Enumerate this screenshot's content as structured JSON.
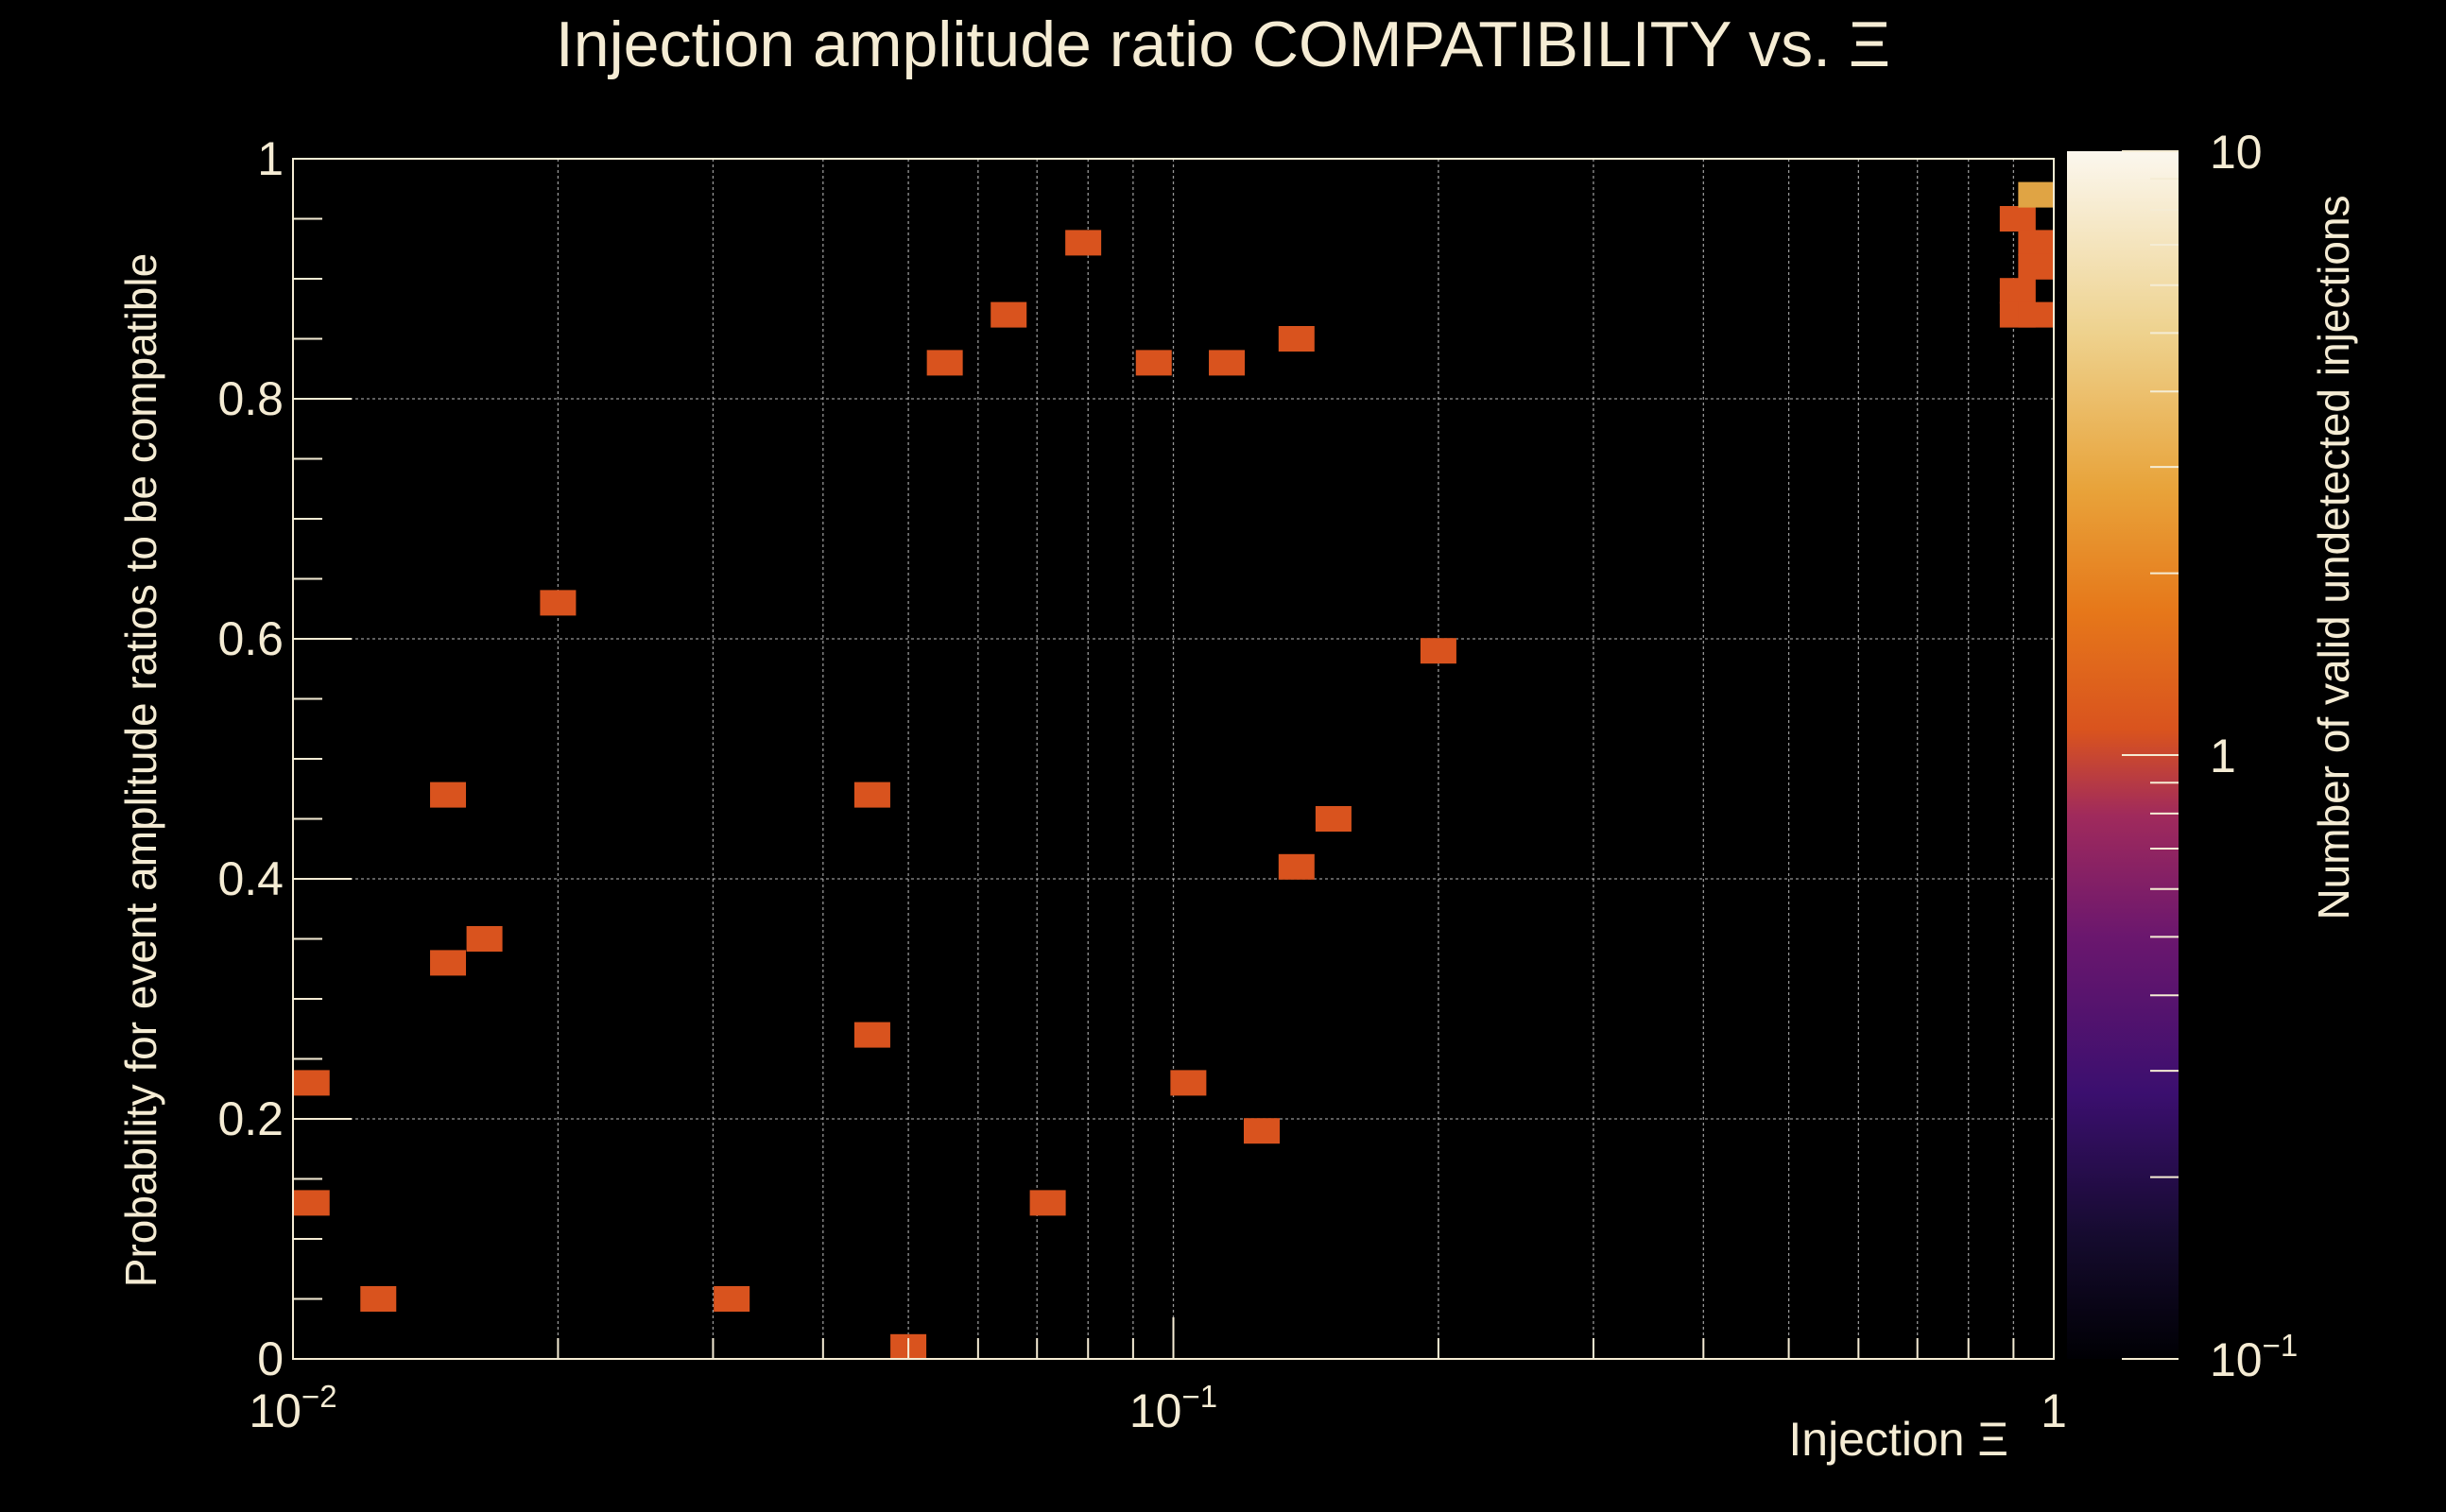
{
  "colors": {
    "background": "#000000",
    "text": "#f5ecd4",
    "axis": "#f5ecd4",
    "grid": "#c8c8c8",
    "cell": "#d9531e",
    "cell_high": "#e0a444"
  },
  "chart_data": {
    "type": "heatmap",
    "title": "Injection amplitude ratio COMPATIBILITY vs.  Ξ",
    "xlabel": "Injection Ξ",
    "ylabel": "Probability for event amplitude ratios to be compatible",
    "zlabel": "Number of valid undetected injections",
    "x_scale": "log",
    "xlim": [
      0.01,
      1
    ],
    "ylim": [
      0,
      1
    ],
    "z_scale": "log",
    "zlim": [
      0.1,
      10
    ],
    "grid": true,
    "x_ticks": [
      {
        "value": 0.01,
        "base": "10",
        "exp": "−2"
      },
      {
        "value": 0.1,
        "base": "10",
        "exp": "−1"
      },
      {
        "value": 1,
        "base": "1",
        "exp": ""
      }
    ],
    "y_ticks": [
      {
        "value": 0,
        "label": "0"
      },
      {
        "value": 0.2,
        "label": "0.2"
      },
      {
        "value": 0.4,
        "label": "0.4"
      },
      {
        "value": 0.6,
        "label": "0.6"
      },
      {
        "value": 0.8,
        "label": "0.8"
      },
      {
        "value": 1,
        "label": "1"
      }
    ],
    "z_ticks": [
      {
        "value": 10,
        "base": "10",
        "exp": ""
      },
      {
        "value": 1,
        "base": "1",
        "exp": ""
      },
      {
        "value": 0.1,
        "base": "10",
        "exp": "−1"
      }
    ],
    "colorscale": [
      {
        "pos": 0.0,
        "color": "#000004"
      },
      {
        "pos": 0.1,
        "color": "#150b2e"
      },
      {
        "pos": 0.22,
        "color": "#3b0f6f"
      },
      {
        "pos": 0.35,
        "color": "#6b176e"
      },
      {
        "pos": 0.45,
        "color": "#a02a5c"
      },
      {
        "pos": 0.52,
        "color": "#d9531e"
      },
      {
        "pos": 0.62,
        "color": "#e6781a"
      },
      {
        "pos": 0.72,
        "color": "#e8a33a"
      },
      {
        "pos": 0.85,
        "color": "#eed28e"
      },
      {
        "pos": 1.0,
        "color": "#fbf7ee"
      }
    ],
    "cells": [
      {
        "x": 0.0105,
        "y": 0.23,
        "z": 1
      },
      {
        "x": 0.0105,
        "y": 0.13,
        "z": 1
      },
      {
        "x": 0.0125,
        "y": 0.05,
        "z": 1
      },
      {
        "x": 0.015,
        "y": 0.47,
        "z": 1
      },
      {
        "x": 0.015,
        "y": 0.33,
        "z": 1
      },
      {
        "x": 0.0165,
        "y": 0.35,
        "z": 1
      },
      {
        "x": 0.02,
        "y": 0.63,
        "z": 1
      },
      {
        "x": 0.0315,
        "y": 0.05,
        "z": 1
      },
      {
        "x": 0.0455,
        "y": 0.47,
        "z": 1
      },
      {
        "x": 0.0455,
        "y": 0.27,
        "z": 1
      },
      {
        "x": 0.05,
        "y": 0.01,
        "z": 1
      },
      {
        "x": 0.055,
        "y": 0.83,
        "z": 1
      },
      {
        "x": 0.065,
        "y": 0.87,
        "z": 1
      },
      {
        "x": 0.072,
        "y": 0.13,
        "z": 1
      },
      {
        "x": 0.079,
        "y": 0.93,
        "z": 1
      },
      {
        "x": 0.095,
        "y": 0.83,
        "z": 1
      },
      {
        "x": 0.104,
        "y": 0.23,
        "z": 1
      },
      {
        "x": 0.115,
        "y": 0.83,
        "z": 1
      },
      {
        "x": 0.126,
        "y": 0.19,
        "z": 1
      },
      {
        "x": 0.138,
        "y": 0.85,
        "z": 1
      },
      {
        "x": 0.138,
        "y": 0.41,
        "z": 1
      },
      {
        "x": 0.152,
        "y": 0.45,
        "z": 1
      },
      {
        "x": 0.2,
        "y": 0.59,
        "z": 1
      },
      {
        "x": 0.91,
        "y": 0.95,
        "z": 1
      },
      {
        "x": 0.91,
        "y": 0.89,
        "z": 1
      },
      {
        "x": 0.91,
        "y": 0.87,
        "z": 1
      },
      {
        "x": 0.955,
        "y": 0.97,
        "z": 3
      },
      {
        "x": 0.955,
        "y": 0.93,
        "z": 1
      },
      {
        "x": 0.955,
        "y": 0.91,
        "z": 1
      },
      {
        "x": 0.955,
        "y": 0.87,
        "z": 1
      }
    ]
  }
}
